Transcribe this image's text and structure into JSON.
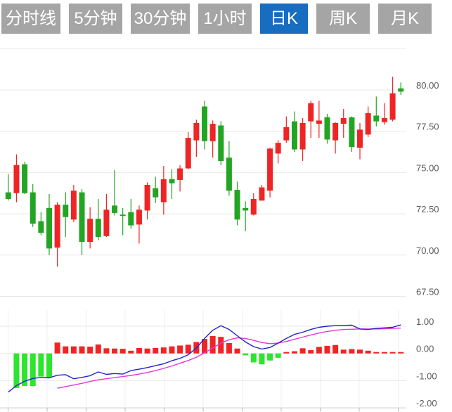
{
  "tabs": [
    {
      "label": "分时线",
      "active": false
    },
    {
      "label": "5分钟",
      "active": false
    },
    {
      "label": "30分钟",
      "active": false
    },
    {
      "label": "1小时",
      "active": false
    },
    {
      "label": "日K",
      "active": true
    },
    {
      "label": "周K",
      "active": false
    },
    {
      "label": "月K",
      "active": false
    }
  ],
  "colors": {
    "up": "#ef2525",
    "down": "#22a522",
    "macd_up": "#ef2525",
    "macd_down": "#2de52d",
    "dif": "#2222cc",
    "dea": "#e935d5",
    "grid": "#e8e8e8",
    "vgrid": "#efefef",
    "axis": "#cccccc",
    "tick": "#b5b5b5",
    "label": "#595959",
    "tab_bg": "#a5a5a5",
    "tab_active_bg": "#176dc0",
    "tab_text": "#ffffff"
  },
  "chart_data": {
    "type": "candlestick",
    "title": "",
    "legend_position": "none",
    "grid": true,
    "price_panel": {
      "ylim": [
        66.2,
        82.9
      ],
      "grid_values": [
        82.5,
        80,
        77.5,
        75,
        72.5,
        70,
        67.5
      ],
      "y_ticks": [
        {
          "value": 80.0,
          "label": "80.00"
        },
        {
          "value": 77.5,
          "label": "77.50"
        },
        {
          "value": 75.0,
          "label": "75.00"
        },
        {
          "value": 72.5,
          "label": "72.50"
        },
        {
          "value": 70.0,
          "label": "70.00"
        },
        {
          "value": 67.5,
          "label": "67.50"
        }
      ],
      "candles_format": "[open, high, low, close]",
      "candles": [
        [
          73.8,
          74.9,
          73.3,
          73.4
        ],
        [
          73.75,
          76.1,
          73.2,
          75.45
        ],
        [
          75.5,
          75.65,
          73.7,
          73.75
        ],
        [
          73.8,
          74.3,
          71.7,
          71.9
        ],
        [
          72.05,
          72.6,
          71.2,
          71.35
        ],
        [
          72.85,
          73.7,
          70.0,
          70.4
        ],
        [
          70.45,
          73.2,
          69.3,
          73.05
        ],
        [
          73.05,
          73.8,
          71.1,
          72.3
        ],
        [
          72.15,
          74.25,
          72.0,
          73.9
        ],
        [
          73.8,
          74.0,
          70.0,
          70.8
        ],
        [
          70.8,
          72.9,
          70.4,
          72.2
        ],
        [
          72.2,
          73.4,
          70.9,
          71.1
        ],
        [
          71.15,
          73.7,
          71.1,
          72.75
        ],
        [
          73.0,
          75.15,
          72.4,
          72.55
        ],
        [
          72.45,
          72.85,
          71.2,
          72.4
        ],
        [
          72.6,
          73.4,
          71.6,
          71.8
        ],
        [
          71.85,
          73.0,
          70.7,
          72.75
        ],
        [
          72.7,
          74.4,
          72.15,
          74.25
        ],
        [
          74.05,
          74.75,
          73.15,
          73.5
        ],
        [
          73.2,
          75.4,
          72.45,
          74.6
        ],
        [
          74.6,
          75.2,
          73.4,
          74.35
        ],
        [
          74.55,
          75.45,
          73.85,
          75.25
        ],
        [
          75.25,
          77.45,
          75.2,
          77.1
        ],
        [
          76.95,
          78.2,
          75.95,
          78.0
        ],
        [
          79.0,
          79.35,
          76.4,
          76.9
        ],
        [
          76.9,
          78.15,
          75.9,
          77.95
        ],
        [
          77.85,
          78.1,
          75.45,
          75.7
        ],
        [
          75.9,
          76.9,
          73.6,
          73.9
        ],
        [
          73.95,
          74.45,
          71.8,
          72.15
        ],
        [
          72.85,
          73.25,
          71.45,
          72.7
        ],
        [
          72.45,
          73.75,
          72.4,
          73.4
        ],
        [
          73.3,
          74.25,
          73.3,
          74.1
        ],
        [
          73.9,
          76.5,
          73.5,
          76.45
        ],
        [
          76.15,
          76.95,
          75.55,
          76.8
        ],
        [
          76.95,
          78.4,
          76.8,
          77.75
        ],
        [
          78.1,
          78.7,
          76.25,
          76.4
        ],
        [
          76.4,
          78.3,
          75.7,
          78.0
        ],
        [
          78.1,
          79.35,
          77.1,
          79.2
        ],
        [
          77.95,
          79.35,
          77.1,
          78.15
        ],
        [
          78.35,
          78.55,
          76.75,
          77.0
        ],
        [
          76.95,
          78.05,
          76.15,
          78.0
        ],
        [
          77.95,
          78.85,
          77.1,
          78.3
        ],
        [
          78.35,
          78.4,
          76.25,
          76.55
        ],
        [
          76.5,
          78.0,
          75.8,
          77.6
        ],
        [
          77.3,
          79.0,
          77.15,
          78.6
        ],
        [
          78.45,
          79.6,
          77.8,
          78.1
        ],
        [
          78.05,
          79.2,
          77.9,
          78.3
        ],
        [
          78.2,
          80.8,
          78.1,
          79.8
        ],
        [
          80.1,
          80.45,
          79.7,
          79.9
        ]
      ]
    },
    "macd_panel": {
      "ylim": [
        -2.0,
        1.55
      ],
      "grid_values": [
        1,
        0,
        -1
      ],
      "y_ticks": [
        {
          "value": 1.0,
          "label": "1.00"
        },
        {
          "value": 0.0,
          "label": "0.00"
        },
        {
          "value": -1.0,
          "label": "-1.00"
        },
        {
          "value": -2.0,
          "label": "-2.00"
        }
      ],
      "histogram": [
        null,
        -1.27,
        -1.2,
        -1.2,
        -0.85,
        -0.88,
        0.4,
        0.26,
        0.26,
        0.26,
        0.25,
        0.33,
        0.19,
        0.18,
        0.17,
        0.1,
        0.2,
        0.18,
        0.2,
        0.22,
        0.26,
        0.29,
        0.32,
        0.42,
        0.53,
        0.64,
        0.61,
        0.38,
        0.18,
        -0.07,
        -0.33,
        -0.4,
        -0.26,
        -0.16,
        0.03,
        0.08,
        0.19,
        0.12,
        0.24,
        0.28,
        0.31,
        0.14,
        0.16,
        0.14,
        0.1,
        0.02,
        0.02,
        0.02,
        0.05
      ],
      "dif": [
        -1.42,
        -1.18,
        -1.02,
        -0.92,
        -0.88,
        -0.9,
        -0.8,
        -0.78,
        -0.93,
        -0.88,
        -0.82,
        -0.68,
        -0.77,
        -0.74,
        -0.76,
        -0.63,
        -0.58,
        -0.52,
        -0.45,
        -0.38,
        -0.27,
        -0.18,
        -0.05,
        0.2,
        0.55,
        0.85,
        1.02,
        0.88,
        0.65,
        0.42,
        0.25,
        0.16,
        0.22,
        0.38,
        0.55,
        0.7,
        0.78,
        0.88,
        0.96,
        1.0,
        1.02,
        1.03,
        1.04,
        0.9,
        0.88,
        0.92,
        0.94,
        0.96,
        1.05
      ],
      "dea": [
        null,
        null,
        null,
        null,
        null,
        null,
        -1.28,
        -1.22,
        -1.16,
        -1.1,
        -1.03,
        -0.97,
        -0.93,
        -0.89,
        -0.85,
        -0.81,
        -0.76,
        -0.7,
        -0.63,
        -0.55,
        -0.46,
        -0.36,
        -0.26,
        -0.14,
        0.02,
        0.2,
        0.38,
        0.5,
        0.57,
        0.55,
        0.48,
        0.4,
        0.36,
        0.38,
        0.44,
        0.52,
        0.6,
        0.68,
        0.75,
        0.81,
        0.85,
        0.88,
        0.89,
        0.9,
        0.9,
        0.9,
        0.91,
        0.92,
        0.93
      ]
    }
  }
}
